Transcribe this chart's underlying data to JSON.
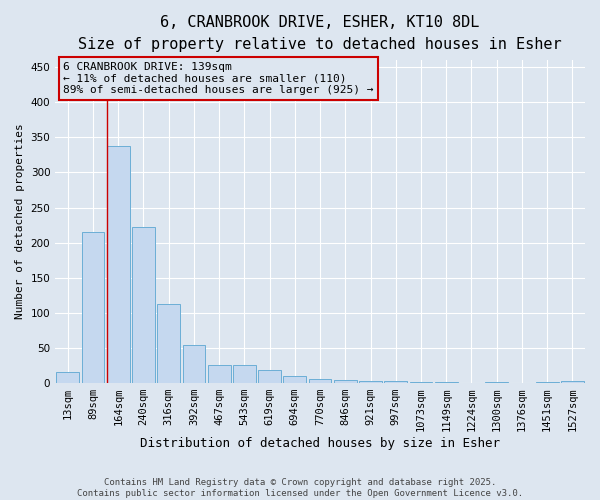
{
  "title_line1": "6, CRANBROOK DRIVE, ESHER, KT10 8DL",
  "title_line2": "Size of property relative to detached houses in Esher",
  "xlabel": "Distribution of detached houses by size in Esher",
  "ylabel": "Number of detached properties",
  "bar_color": "#c5d8ef",
  "bar_edge_color": "#6baed6",
  "categories": [
    "13sqm",
    "89sqm",
    "164sqm",
    "240sqm",
    "316sqm",
    "392sqm",
    "467sqm",
    "543sqm",
    "619sqm",
    "694sqm",
    "770sqm",
    "846sqm",
    "921sqm",
    "997sqm",
    "1073sqm",
    "1149sqm",
    "1224sqm",
    "1300sqm",
    "1376sqm",
    "1451sqm",
    "1527sqm"
  ],
  "values": [
    15,
    215,
    338,
    222,
    112,
    54,
    26,
    26,
    18,
    10,
    5,
    4,
    2,
    2,
    1,
    1,
    0,
    1,
    0,
    1,
    3
  ],
  "ylim": [
    0,
    460
  ],
  "yticks": [
    0,
    50,
    100,
    150,
    200,
    250,
    300,
    350,
    400,
    450
  ],
  "property_bar_index": 2,
  "red_line_color": "#cc0000",
  "annotation_line1": "6 CRANBROOK DRIVE: 139sqm",
  "annotation_line2": "← 11% of detached houses are smaller (110)",
  "annotation_line3": "89% of semi-detached houses are larger (925) →",
  "annotation_box_color": "#cc0000",
  "background_color": "#dde6f0",
  "grid_color": "#ffffff",
  "footer_text": "Contains HM Land Registry data © Crown copyright and database right 2025.\nContains public sector information licensed under the Open Government Licence v3.0.",
  "title_fontsize": 11,
  "subtitle_fontsize": 9.5,
  "xlabel_fontsize": 9,
  "ylabel_fontsize": 8,
  "tick_fontsize": 7.5,
  "annotation_fontsize": 8
}
